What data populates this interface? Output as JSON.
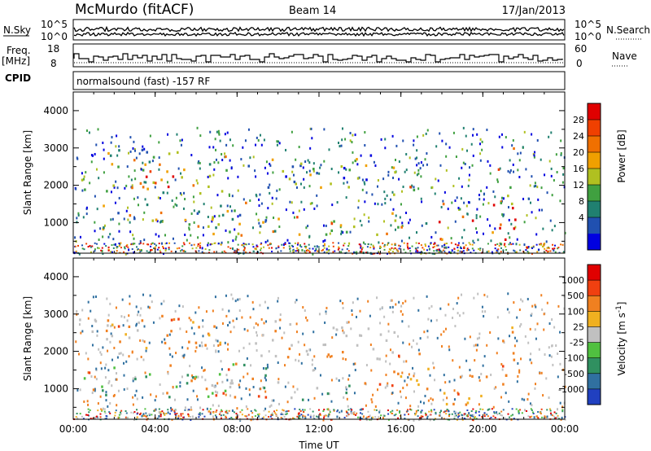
{
  "header": {
    "station": "McMurdo (fitACF)",
    "beam": "Beam 14",
    "date": "17/Jan/2013"
  },
  "top_panels": {
    "nsky_label": "N.Sky",
    "nsearch_label": "N.Search",
    "nsky_ticks": [
      "10^5",
      "10^0"
    ],
    "nsearch_ticks": [
      "10^5",
      "10^0"
    ],
    "freq_label": "Freq.",
    "freq_unit": "[MHz]",
    "freq_ticks": [
      "18",
      "8"
    ],
    "nave_label": "Nave",
    "nave_ticks": [
      "60",
      "0"
    ],
    "cpid_label": "CPID",
    "cpid_text": "normalsound (fast) -157 RF"
  },
  "x_axis": {
    "title": "Time UT",
    "ticks": [
      "00:00",
      "04:00",
      "08:00",
      "12:00",
      "16:00",
      "20:00",
      "00:00"
    ]
  },
  "chart_data": [
    {
      "type": "heatmap",
      "panel": "power",
      "ylabel": "Slant Range [km]",
      "y_ticks": [
        "4000",
        "3000",
        "2000",
        "1000"
      ],
      "ylim": [
        180,
        4500
      ],
      "xlim_hours": [
        0,
        24
      ],
      "colorbar": {
        "label": "Power [dB]",
        "ticks": [
          "28",
          "24",
          "20",
          "16",
          "12",
          "8",
          "4"
        ],
        "colors": [
          "#0000e0",
          "#2050b0",
          "#208070",
          "#40a040",
          "#b0c020",
          "#f0a000",
          "#f07000",
          "#f04000",
          "#e00000"
        ]
      },
      "regions": [
        {
          "t0": 0.2,
          "t1": 7.6,
          "r0": 1800,
          "r1": 3000,
          "level": 0.45
        },
        {
          "t0": 2.8,
          "t1": 5.0,
          "r0": 1900,
          "r1": 2900,
          "level": 0.9
        },
        {
          "t0": 1.0,
          "t1": 9.8,
          "r0": 800,
          "r1": 1600,
          "level": 0.45
        },
        {
          "t0": 6.2,
          "t1": 15.8,
          "r0": 650,
          "r1": 1250,
          "level": 0.55
        },
        {
          "t0": 15.2,
          "t1": 17.2,
          "r0": 900,
          "r1": 2000,
          "level": 0.55
        },
        {
          "t0": 17.8,
          "t1": 21.6,
          "r0": 550,
          "r1": 1600,
          "level": 0.85
        },
        {
          "t0": 20.6,
          "t1": 21.6,
          "r0": 1500,
          "r1": 3100,
          "level": 0.6
        },
        {
          "t0": 8.5,
          "t1": 16.0,
          "r0": 1900,
          "r1": 2900,
          "level": 0.35
        }
      ]
    },
    {
      "type": "heatmap",
      "panel": "velocity",
      "ylabel": "Slant Range [km]",
      "y_ticks": [
        "4000",
        "3000",
        "2000",
        "1000"
      ],
      "ylim": [
        180,
        4500
      ],
      "xlim_hours": [
        0,
        24
      ],
      "colorbar": {
        "label": "Velocity [m s",
        "label_exp": "-1",
        "label_close": "]",
        "ticks": [
          "1000",
          "500",
          "100",
          "25",
          "-25",
          "-100",
          "-500",
          "-1000"
        ],
        "colors": [
          "#2040c0",
          "#3070a0",
          "#309060",
          "#50c040",
          "#c0c0c0",
          "#f0b020",
          "#f08020",
          "#f04010",
          "#e00000"
        ]
      },
      "regions": [
        {
          "t0": 0.2,
          "t1": 4.5,
          "r0": 2300,
          "r1": 3000,
          "kind": "gray"
        },
        {
          "t0": 1.5,
          "t1": 7.8,
          "r0": 1900,
          "r1": 2900,
          "kind": "orange"
        },
        {
          "t0": 8.5,
          "t1": 15.8,
          "r0": 1800,
          "r1": 2900,
          "kind": "gray"
        },
        {
          "t0": 0.5,
          "t1": 9.5,
          "r0": 800,
          "r1": 1700,
          "kind": "green"
        },
        {
          "t0": 5.5,
          "t1": 15.5,
          "r0": 700,
          "r1": 1300,
          "kind": "mixed"
        },
        {
          "t0": 14.8,
          "t1": 17.5,
          "r0": 900,
          "r1": 2000,
          "kind": "orange"
        },
        {
          "t0": 17.8,
          "t1": 21.6,
          "r0": 600,
          "r1": 1500,
          "kind": "orange"
        },
        {
          "t0": 20.8,
          "t1": 21.8,
          "r0": 1600,
          "r1": 3200,
          "kind": "orange"
        }
      ]
    }
  ]
}
